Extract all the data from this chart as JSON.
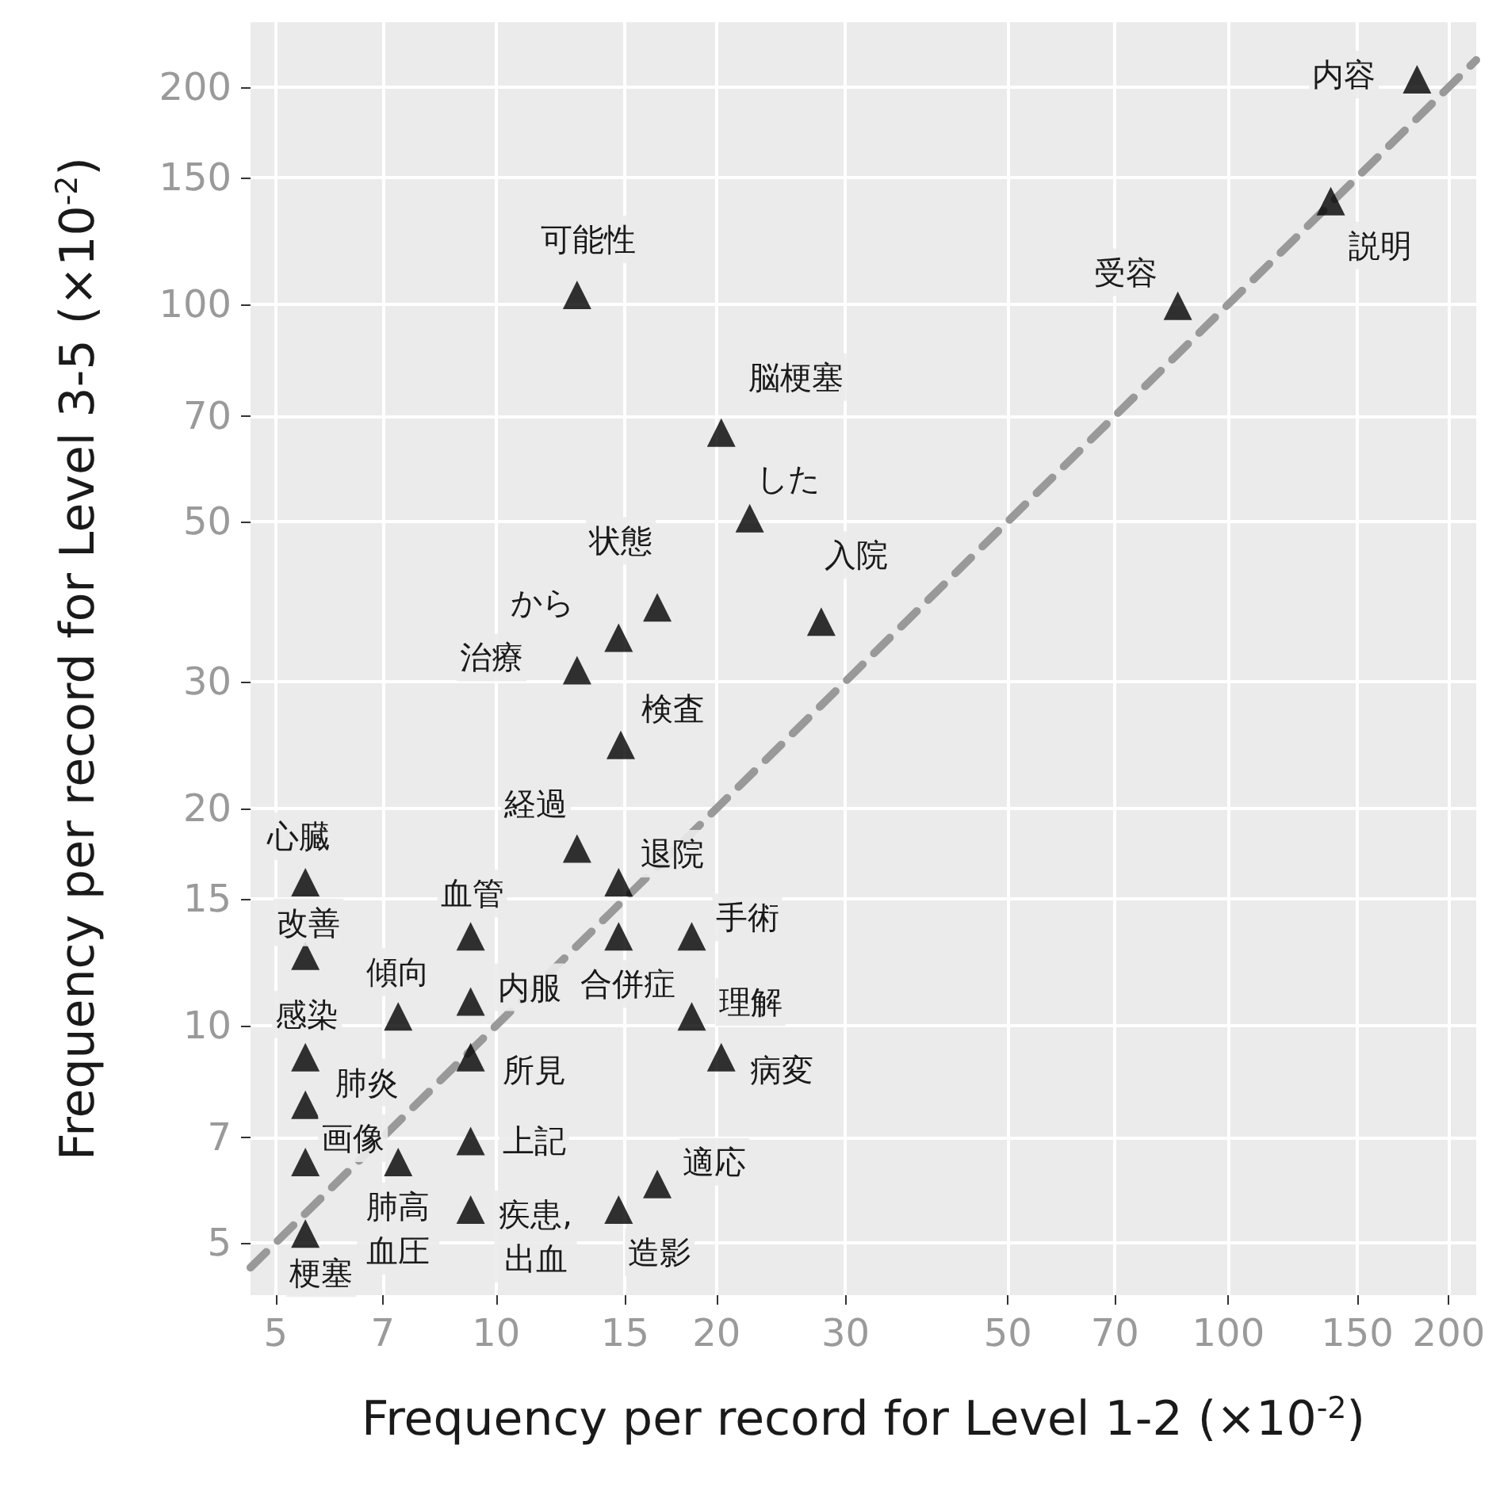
{
  "chart_data": {
    "type": "scatter",
    "xlabel": "Frequency per record for Level 1-2 (×10$^{-2}$)",
    "ylabel": "Frequency per record for Level 3-5 (×10$^{-2}$)",
    "log": "xy",
    "grid": true,
    "marker": "triangle",
    "xlim": [
      4.62,
      218
    ],
    "ylim": [
      4.23,
      246
    ],
    "xticks": [
      5,
      7,
      10,
      15,
      20,
      30,
      50,
      70,
      100,
      150,
      200
    ],
    "yticks": [
      5,
      7,
      10,
      15,
      20,
      30,
      50,
      70,
      100,
      150,
      200
    ],
    "series": [
      {
        "color": "#000000",
        "x": [
          12.9,
          20.3,
          22.2,
          16.6,
          14.7,
          12.9,
          27.8,
          181,
          138,
          85.3,
          14.8,
          12.9,
          14.7,
          5.49,
          5.49,
          9.23,
          14.7,
          18.5,
          9.23,
          7.35,
          18.5,
          5.49,
          9.23,
          20.3,
          5.49,
          9.23,
          5.49,
          7.35,
          16.6,
          9.23,
          14.7,
          5.49
        ],
        "values": [
          103,
          66.4,
          50.5,
          38.0,
          34.5,
          31.1,
          36.3,
          205,
          139,
          99.5,
          24.5,
          17.6,
          15.8,
          15.8,
          12.5,
          13.3,
          13.3,
          13.3,
          10.8,
          10.3,
          10.3,
          9.04,
          9.04,
          9.04,
          7.77,
          6.92,
          6.47,
          6.47,
          6.03,
          5.56,
          5.56,
          5.15
        ]
      },
      {
        "type": "line",
        "color": "#999999",
        "line_style": "dashed",
        "marker": "none",
        "x": [
          4.62,
          218
        ],
        "values": [
          4.62,
          218
        ]
      }
    ],
    "annotations": [
      {
        "text": "可能性",
        "x": 12.9,
        "y": 103
      },
      {
        "text": "脳梗塞",
        "x": 20.3,
        "y": 66.4
      },
      {
        "text": "した",
        "x": 22.2,
        "y": 50.5
      },
      {
        "text": "状態",
        "x": 16.6,
        "y": 38.0
      },
      {
        "text": "から",
        "x": 14.7,
        "y": 34.5
      },
      {
        "text": "治療",
        "x": 12.9,
        "y": 31.1
      },
      {
        "text": "入院",
        "x": 27.8,
        "y": 36.3
      },
      {
        "text": "内容",
        "x": 181,
        "y": 205
      },
      {
        "text": "説明",
        "x": 138,
        "y": 139
      },
      {
        "text": "受容",
        "x": 85.3,
        "y": 99.5
      },
      {
        "text": "検査",
        "x": 14.8,
        "y": 24.5
      },
      {
        "text": "経過",
        "x": 12.9,
        "y": 17.6
      },
      {
        "text": "退院",
        "x": 14.7,
        "y": 15.8
      },
      {
        "text": "心臓",
        "x": 5.49,
        "y": 15.8
      },
      {
        "text": "改善",
        "x": 5.49,
        "y": 12.5
      },
      {
        "text": "血管",
        "x": 9.23,
        "y": 13.3
      },
      {
        "text": "合併症",
        "x": 14.7,
        "y": 13.3
      },
      {
        "text": "手術",
        "x": 18.5,
        "y": 13.3
      },
      {
        "text": "内服",
        "x": 9.23,
        "y": 10.8
      },
      {
        "text": "傾向",
        "x": 7.35,
        "y": 10.3
      },
      {
        "text": "理解",
        "x": 18.5,
        "y": 10.3
      },
      {
        "text": "感染",
        "x": 5.49,
        "y": 9.04
      },
      {
        "text": "所見",
        "x": 9.23,
        "y": 9.04
      },
      {
        "text": "病変",
        "x": 20.3,
        "y": 9.04
      },
      {
        "text": "肺炎",
        "x": 5.49,
        "y": 7.77
      },
      {
        "text": "上記",
        "x": 9.23,
        "y": 6.92
      },
      {
        "text": "画像",
        "x": 5.49,
        "y": 6.47
      },
      {
        "text": "肺高血圧",
        "x": 7.35,
        "y": 6.47
      },
      {
        "text": "適応",
        "x": 16.6,
        "y": 6.03
      },
      {
        "text": "疾患,出血",
        "x": 9.23,
        "y": 5.56
      },
      {
        "text": "造影",
        "x": 14.7,
        "y": 5.56
      },
      {
        "text": "梗塞",
        "x": 5.49,
        "y": 5.15
      }
    ]
  }
}
